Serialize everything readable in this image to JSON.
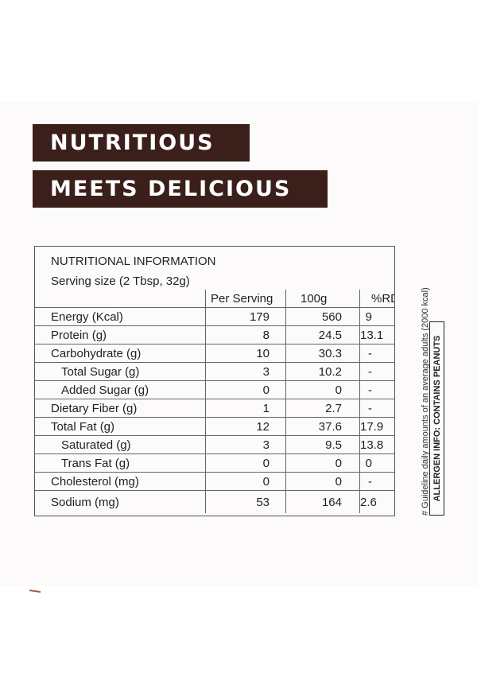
{
  "banner": {
    "line1": "NUTRITIOUS",
    "line2": "MEETS DELICIOUS"
  },
  "nutrition": {
    "title": "NUTRITIONAL INFORMATION",
    "serving": "Serving size (2 Tbsp, 32g)",
    "columns": [
      "",
      "Per Serving",
      "100g",
      "%RDA"
    ],
    "rows": [
      {
        "name": "Energy (Kcal)",
        "per_serving": "179",
        "per_100g": "560",
        "rda": "9"
      },
      {
        "name": "Protein (g)",
        "per_serving": "8",
        "per_100g": "24.5",
        "rda": "13.1"
      },
      {
        "name": "Carbohydrate (g)",
        "per_serving": "10",
        "per_100g": "30.3",
        "rda": "-"
      },
      {
        "name": "Total Sugar (g)",
        "per_serving": "3",
        "per_100g": "10.2",
        "rda": "-"
      },
      {
        "name": "Added Sugar (g)",
        "per_serving": "0",
        "per_100g": "0",
        "rda": "-"
      },
      {
        "name": "Dietary Fiber (g)",
        "per_serving": "1",
        "per_100g": "2.7",
        "rda": "-"
      },
      {
        "name": "Total Fat (g)",
        "per_serving": "12",
        "per_100g": "37.6",
        "rda": "17.9"
      },
      {
        "name": "Saturated (g)",
        "per_serving": "3",
        "per_100g": "9.5",
        "rda": "13.8"
      },
      {
        "name": "Trans Fat (g)",
        "per_serving": "0",
        "per_100g": "0",
        "rda": "0"
      },
      {
        "name": "Cholesterol (mg)",
        "per_serving": "0",
        "per_100g": "0",
        "rda": "-"
      },
      {
        "name": "Sodium (mg)",
        "per_serving": "53",
        "per_100g": "164",
        "rda": "2.6"
      }
    ]
  },
  "guideline": "# Guideline daily amounts of an average adults (2000 kcal)",
  "allergen": "ALLERGEN INFO: CONTAINS PEANUTS",
  "colors": {
    "banner_bg": "#3b1f1a",
    "banner_text": "#ffffff",
    "panel_bg": "#fcfafa"
  }
}
